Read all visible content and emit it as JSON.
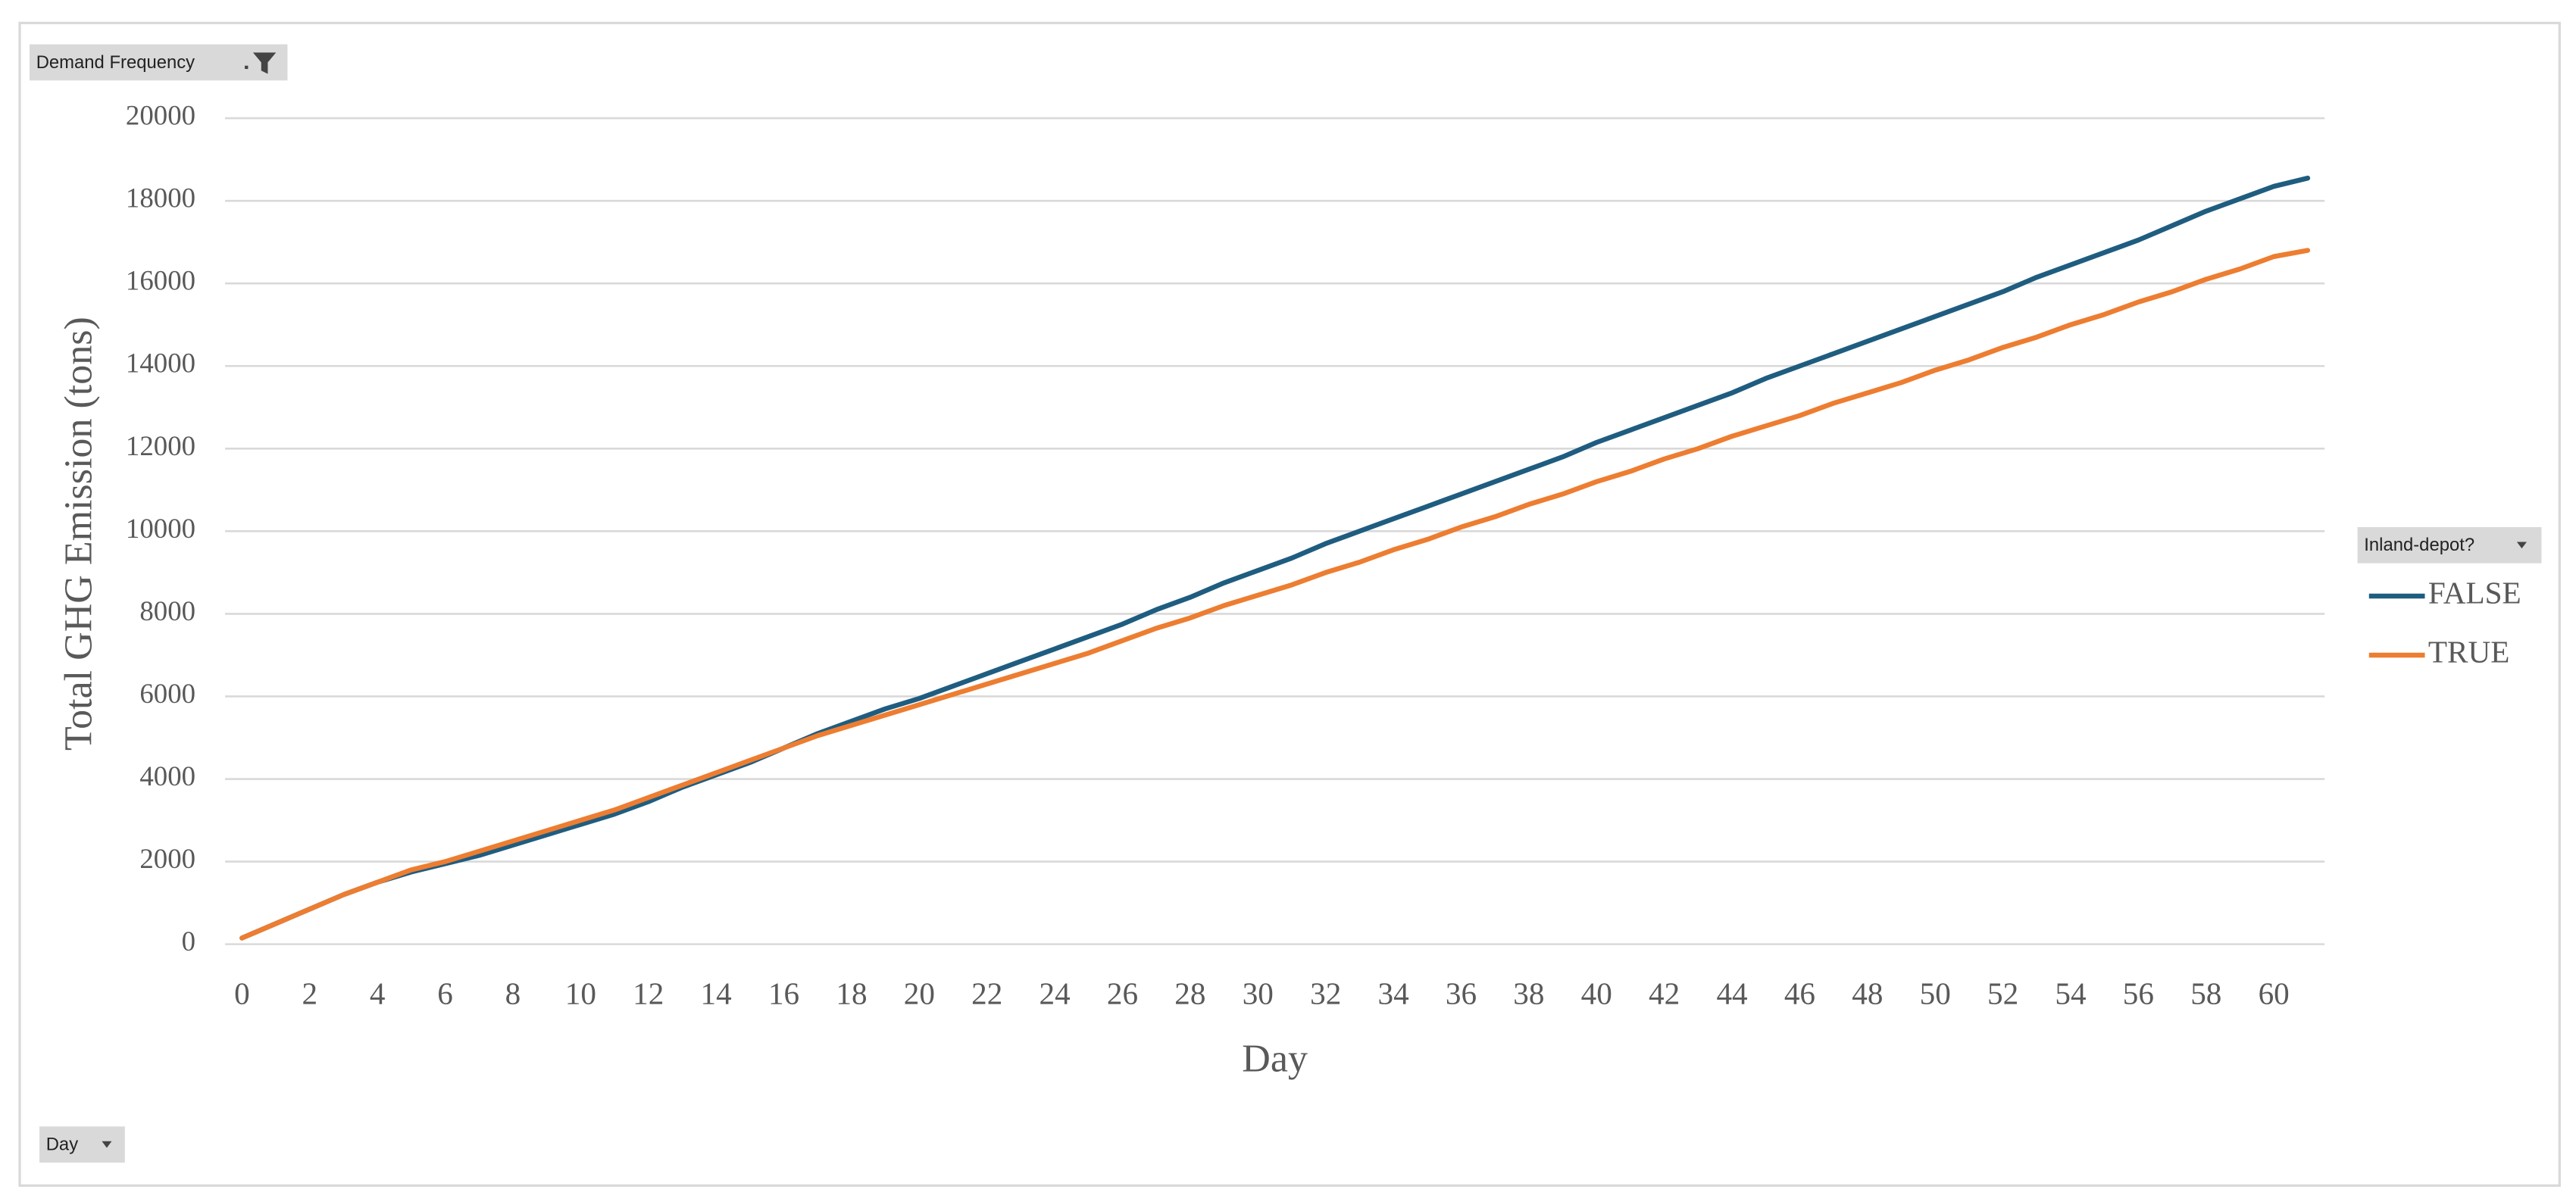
{
  "chart_data": {
    "type": "line",
    "filter_label": "Demand Frequency",
    "legend_title": "Inland-depot?",
    "axis_field_label": "Day",
    "x_label": "Day",
    "y_label": "Total GHG Emission  (tons)",
    "categories": [
      "0",
      null,
      "2",
      null,
      "4",
      null,
      "6",
      null,
      "8",
      null,
      "10",
      null,
      "12",
      null,
      "14",
      null,
      "16",
      null,
      "18",
      null,
      "20",
      null,
      "22",
      null,
      "24",
      null,
      "26",
      null,
      "28",
      null,
      "30",
      null,
      "32",
      null,
      "34",
      null,
      "36",
      null,
      "38",
      null,
      "40",
      null,
      "42",
      null,
      "44",
      null,
      "46",
      null,
      "48",
      null,
      "50",
      null,
      "52",
      null,
      "54",
      null,
      "56",
      null,
      "58",
      null,
      "60",
      null
    ],
    "series": [
      {
        "name": "FALSE",
        "color": "#1f5d80",
        "values": [
          150,
          500,
          850,
          1200,
          1500,
          1750,
          1950,
          2150,
          2400,
          2650,
          2900,
          3150,
          3450,
          3800,
          4100,
          4400,
          4750,
          5100,
          5400,
          5700,
          5950,
          6250,
          6550,
          6850,
          7150,
          7450,
          7750,
          8100,
          8400,
          8750,
          9050,
          9350,
          9700,
          10000,
          10300,
          10600,
          10900,
          11200,
          11500,
          11800,
          12150,
          12450,
          12750,
          13050,
          13350,
          13700,
          14000,
          14300,
          14600,
          14900,
          15200,
          15500,
          15800,
          16150,
          16450,
          16750,
          17050,
          17400,
          17750,
          18050,
          18350,
          18550
        ]
      },
      {
        "name": "TRUE",
        "color": "#ed7d31",
        "values": [
          150,
          500,
          850,
          1200,
          1500,
          1800,
          2000,
          2250,
          2500,
          2750,
          3000,
          3250,
          3550,
          3850,
          4150,
          4450,
          4750,
          5050,
          5300,
          5550,
          5800,
          6050,
          6300,
          6550,
          6800,
          7050,
          7350,
          7650,
          7900,
          8200,
          8450,
          8700,
          9000,
          9250,
          9550,
          9800,
          10100,
          10350,
          10650,
          10900,
          11200,
          11450,
          11750,
          12000,
          12300,
          12550,
          12800,
          13100,
          13350,
          13600,
          13900,
          14150,
          14450,
          14700,
          15000,
          15250,
          15550,
          15800,
          16100,
          16350,
          16650,
          16800
        ]
      }
    ],
    "ylim": [
      0,
      20000
    ],
    "yticks": [
      0,
      2000,
      4000,
      6000,
      8000,
      10000,
      12000,
      14000,
      16000,
      18000,
      20000
    ],
    "grid": true,
    "legend": "right"
  }
}
